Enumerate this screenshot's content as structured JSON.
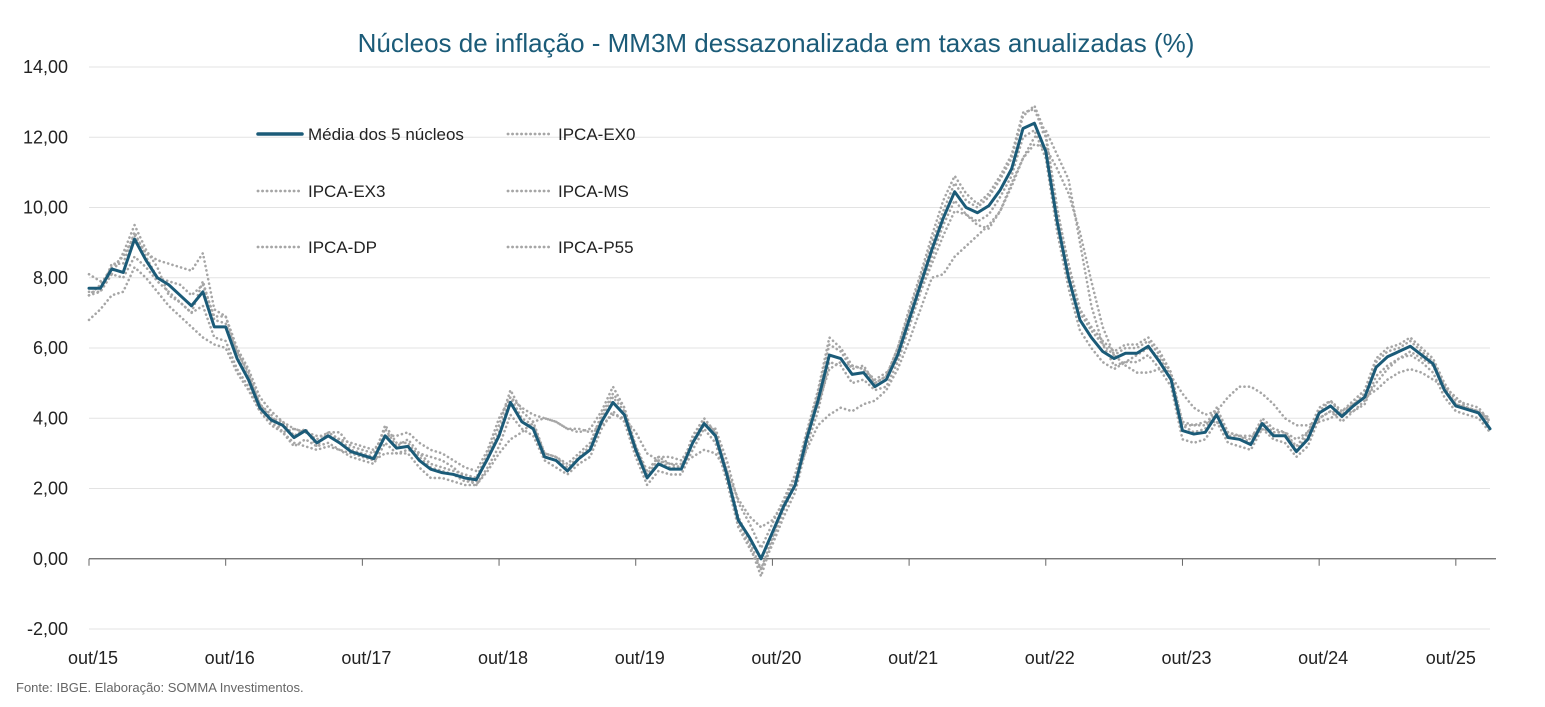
{
  "chart_data": {
    "type": "line",
    "title": "Núcleos de inflação  - MM3M dessazonalizada em taxas anualizadas (%)",
    "source": "Fonte: IBGE. Elaboração: SOMMA Investimentos.",
    "xlabel": "",
    "ylabel": "",
    "ylim": [
      -2,
      14
    ],
    "yticks": [
      -2,
      0,
      2,
      4,
      6,
      8,
      10,
      12,
      14
    ],
    "ytick_labels": [
      "-2,00",
      "0,00",
      "2,00",
      "4,00",
      "6,00",
      "8,00",
      "10,00",
      "12,00",
      "14,00"
    ],
    "x_tick_labels": [
      "out/15",
      "out/16",
      "out/17",
      "out/18",
      "out/19",
      "out/20",
      "out/21",
      "out/22",
      "out/23",
      "out/24",
      "out/25"
    ],
    "x_tick_index": [
      0,
      12,
      24,
      36,
      48,
      60,
      72,
      84,
      96,
      108,
      120
    ],
    "legend_position": "top-left inside",
    "grid": true,
    "colors": {
      "main": "#1b5b78",
      "cores": "#a6a6a6",
      "title": "#1b5b78",
      "grid": "#e3e3e3",
      "axis": "#666666"
    },
    "series": [
      {
        "name": "Média dos 5 núcleos",
        "style": "solid",
        "values": [
          7.7,
          7.7,
          8.25,
          8.15,
          9.1,
          8.5,
          8.0,
          7.8,
          7.5,
          7.2,
          7.6,
          6.6,
          6.6,
          5.7,
          5.1,
          4.3,
          3.95,
          3.8,
          3.45,
          3.65,
          3.3,
          3.5,
          3.3,
          3.05,
          2.95,
          2.85,
          3.5,
          3.15,
          3.2,
          2.8,
          2.55,
          2.45,
          2.4,
          2.3,
          2.25,
          2.85,
          3.5,
          4.45,
          3.9,
          3.7,
          2.9,
          2.8,
          2.5,
          2.85,
          3.1,
          3.9,
          4.45,
          4.1,
          3.1,
          2.3,
          2.7,
          2.55,
          2.55,
          3.3,
          3.85,
          3.5,
          2.4,
          1.1,
          0.6,
          0.0,
          0.75,
          1.5,
          2.1,
          3.4,
          4.5,
          5.8,
          5.7,
          5.25,
          5.3,
          4.9,
          5.1,
          5.8,
          6.8,
          7.8,
          8.8,
          9.7,
          10.45,
          10.0,
          9.85,
          10.05,
          10.5,
          11.1,
          12.25,
          12.4,
          11.6,
          9.6,
          8.0,
          6.8,
          6.3,
          5.9,
          5.7,
          5.85,
          5.85,
          6.05,
          5.6,
          5.1,
          3.65,
          3.55,
          3.6,
          4.1,
          3.45,
          3.4,
          3.25,
          3.85,
          3.5,
          3.5,
          3.05,
          3.4,
          4.15,
          4.35,
          4.05,
          4.35,
          4.6,
          5.45,
          5.75,
          5.9,
          6.05,
          5.8,
          5.55,
          4.8,
          4.35,
          4.25,
          4.15,
          3.7
        ]
      },
      {
        "name": "IPCA-EX0",
        "style": "dotted",
        "values": [
          8.1,
          7.9,
          8.1,
          8.7,
          9.5,
          8.8,
          8.3,
          7.5,
          7.3,
          7.0,
          7.9,
          6.8,
          6.7,
          5.9,
          5.3,
          4.4,
          4.1,
          3.6,
          3.7,
          3.6,
          3.4,
          3.6,
          3.6,
          3.2,
          3.1,
          3.0,
          3.7,
          3.2,
          3.4,
          3.0,
          2.7,
          2.6,
          2.5,
          2.4,
          2.3,
          3.0,
          3.8,
          4.8,
          4.2,
          3.9,
          3.0,
          2.9,
          2.7,
          3.0,
          3.3,
          4.1,
          4.7,
          4.3,
          3.2,
          2.5,
          2.9,
          2.7,
          2.6,
          3.5,
          4.0,
          3.6,
          2.5,
          1.2,
          0.5,
          -0.3,
          0.6,
          1.6,
          2.3,
          3.6,
          4.8,
          6.3,
          6.0,
          5.5,
          5.4,
          5.0,
          5.2,
          6.0,
          7.1,
          8.1,
          9.2,
          10.2,
          10.9,
          10.4,
          10.1,
          10.4,
          10.9,
          11.5,
          12.7,
          12.8,
          12.0,
          9.9,
          8.4,
          7.1,
          6.6,
          6.2,
          5.9,
          6.1,
          6.1,
          6.3,
          5.9,
          5.3,
          3.8,
          3.8,
          3.8,
          4.3,
          3.6,
          3.5,
          3.4,
          4.0,
          3.7,
          3.6,
          3.2,
          3.6,
          4.3,
          4.5,
          4.2,
          4.5,
          4.8,
          5.7,
          6.0,
          6.1,
          6.3,
          6.0,
          5.7,
          5.0,
          4.5,
          4.4,
          4.3,
          3.9
        ]
      },
      {
        "name": "IPCA-EX3",
        "style": "dotted",
        "values": [
          7.5,
          7.6,
          8.4,
          8.4,
          9.3,
          8.6,
          8.0,
          7.9,
          7.8,
          7.5,
          7.8,
          6.9,
          6.9,
          5.9,
          5.2,
          4.4,
          4.0,
          3.9,
          3.5,
          3.7,
          3.2,
          3.6,
          3.4,
          3.1,
          3.0,
          2.9,
          3.8,
          3.3,
          3.3,
          2.9,
          2.6,
          2.5,
          2.4,
          2.2,
          2.2,
          2.9,
          3.6,
          4.6,
          4.0,
          3.8,
          3.0,
          2.9,
          2.6,
          2.9,
          3.2,
          4.0,
          4.6,
          4.2,
          3.2,
          2.4,
          2.8,
          2.6,
          2.6,
          3.4,
          3.9,
          3.6,
          2.5,
          1.0,
          0.4,
          -0.5,
          0.5,
          1.4,
          2.1,
          3.5,
          4.7,
          6.1,
          5.9,
          5.4,
          5.5,
          5.0,
          5.2,
          6.0,
          7.0,
          8.0,
          9.0,
          9.9,
          10.7,
          10.2,
          10.0,
          10.3,
          10.8,
          11.4,
          12.6,
          12.9,
          12.1,
          10.0,
          8.3,
          7.0,
          6.5,
          6.1,
          5.8,
          6.0,
          6.0,
          6.2,
          5.8,
          5.3,
          3.8,
          3.6,
          3.7,
          4.2,
          3.5,
          3.5,
          3.3,
          3.9,
          3.6,
          3.6,
          3.1,
          3.5,
          4.2,
          4.5,
          4.1,
          4.4,
          4.7,
          5.6,
          5.9,
          6.0,
          6.2,
          5.9,
          5.6,
          4.9,
          4.4,
          4.3,
          4.2,
          3.8
        ]
      },
      {
        "name": "IPCA-MS",
        "style": "dotted",
        "values": [
          6.8,
          7.1,
          7.5,
          7.6,
          8.3,
          8.0,
          7.6,
          7.2,
          6.9,
          6.6,
          6.3,
          6.1,
          6.0,
          5.3,
          4.8,
          4.2,
          3.9,
          3.6,
          3.3,
          3.2,
          3.1,
          3.2,
          3.1,
          3.0,
          2.9,
          2.8,
          3.0,
          3.0,
          3.1,
          3.0,
          2.9,
          2.8,
          2.6,
          2.3,
          2.1,
          2.5,
          3.0,
          3.4,
          3.6,
          3.9,
          4.0,
          3.9,
          3.7,
          3.7,
          3.6,
          3.8,
          4.1,
          4.0,
          3.6,
          3.0,
          2.8,
          2.7,
          2.7,
          2.9,
          3.1,
          3.0,
          2.5,
          1.7,
          1.2,
          0.9,
          1.1,
          1.6,
          2.3,
          3.1,
          3.8,
          4.1,
          4.3,
          4.2,
          4.4,
          4.5,
          4.8,
          5.4,
          6.2,
          7.1,
          8.0,
          8.1,
          8.6,
          8.9,
          9.2,
          9.5,
          9.9,
          10.6,
          11.4,
          11.8,
          11.7,
          11.1,
          10.4,
          9.3,
          7.9,
          6.6,
          5.8,
          5.5,
          5.3,
          5.3,
          5.4,
          5.2,
          4.7,
          4.3,
          4.1,
          4.2,
          4.6,
          4.9,
          4.9,
          4.7,
          4.4,
          4.0,
          3.8,
          3.8,
          3.9,
          4.0,
          4.2,
          4.4,
          4.6,
          4.8,
          5.1,
          5.3,
          5.4,
          5.3,
          5.1,
          4.9,
          4.6,
          4.3,
          4.2,
          4.0
        ]
      },
      {
        "name": "IPCA-DP",
        "style": "dotted",
        "values": [
          7.5,
          7.8,
          8.3,
          8.6,
          9.2,
          8.7,
          8.5,
          8.4,
          8.3,
          8.2,
          8.7,
          7.1,
          6.9,
          6.0,
          5.4,
          4.6,
          4.2,
          3.9,
          3.7,
          3.6,
          3.5,
          3.5,
          3.4,
          3.3,
          3.2,
          3.1,
          3.5,
          3.5,
          3.6,
          3.3,
          3.1,
          3.0,
          2.8,
          2.6,
          2.5,
          3.1,
          4.0,
          4.6,
          4.3,
          4.1,
          4.0,
          3.9,
          3.7,
          3.6,
          3.7,
          4.2,
          4.9,
          4.3,
          3.2,
          2.3,
          2.9,
          2.9,
          2.8,
          3.3,
          3.8,
          3.7,
          2.8,
          1.6,
          1.0,
          0.3,
          1.0,
          1.7,
          2.4,
          3.6,
          4.4,
          5.4,
          5.6,
          5.5,
          5.4,
          5.1,
          5.3,
          5.6,
          6.6,
          7.6,
          8.4,
          9.2,
          9.9,
          9.8,
          9.5,
          9.4,
          9.9,
          10.7,
          11.4,
          12.0,
          12.2,
          11.5,
          10.8,
          9.0,
          7.2,
          6.1,
          5.5,
          5.6,
          5.8,
          6.0,
          5.7,
          5.2,
          3.9,
          3.8,
          3.9,
          3.9,
          3.6,
          3.5,
          3.5,
          3.7,
          3.6,
          3.6,
          3.4,
          3.6,
          4.0,
          4.2,
          4.1,
          4.2,
          4.5,
          5.0,
          5.4,
          5.7,
          5.9,
          5.7,
          5.5,
          4.8,
          4.4,
          4.3,
          4.2,
          3.9
        ]
      },
      {
        "name": "IPCA-P55",
        "style": "dotted",
        "values": [
          7.6,
          7.6,
          8.1,
          8.0,
          8.6,
          8.3,
          7.9,
          7.6,
          7.3,
          7.0,
          7.2,
          6.3,
          6.2,
          5.4,
          4.9,
          4.2,
          3.8,
          3.6,
          3.2,
          3.4,
          3.2,
          3.3,
          3.1,
          2.9,
          2.8,
          2.7,
          3.3,
          3.0,
          3.0,
          2.6,
          2.3,
          2.3,
          2.2,
          2.1,
          2.1,
          2.6,
          3.2,
          4.1,
          3.7,
          3.5,
          2.8,
          2.6,
          2.4,
          2.7,
          2.9,
          3.7,
          4.2,
          3.9,
          2.9,
          2.1,
          2.5,
          2.4,
          2.4,
          3.1,
          3.7,
          3.3,
          2.2,
          0.9,
          0.3,
          -0.3,
          0.4,
          1.2,
          1.9,
          3.2,
          4.2,
          5.6,
          5.5,
          5.0,
          5.1,
          4.8,
          4.9,
          5.6,
          6.6,
          7.6,
          8.6,
          9.5,
          10.2,
          9.8,
          9.6,
          9.8,
          10.3,
          10.9,
          12.0,
          12.2,
          11.4,
          9.3,
          7.7,
          6.5,
          6.0,
          5.6,
          5.4,
          5.6,
          5.6,
          5.8,
          5.4,
          4.9,
          3.4,
          3.3,
          3.4,
          3.9,
          3.3,
          3.2,
          3.1,
          3.7,
          3.4,
          3.3,
          2.9,
          3.2,
          4.0,
          4.2,
          3.9,
          4.2,
          4.4,
          5.2,
          5.5,
          5.7,
          5.8,
          5.6,
          5.3,
          4.6,
          4.2,
          4.1,
          4.0,
          3.6
        ]
      }
    ]
  }
}
